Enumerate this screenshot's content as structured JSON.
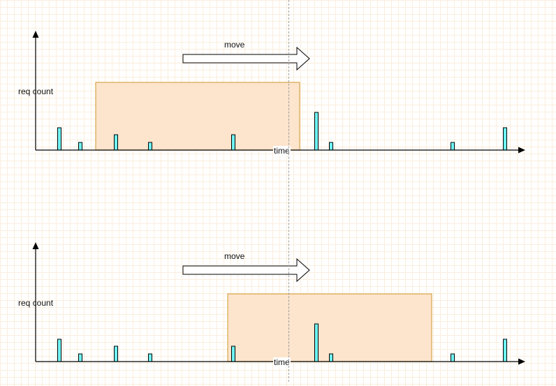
{
  "panels": [
    {
      "id": "top",
      "labels": {
        "y_axis": "req count",
        "x_axis": "time",
        "arrow": "move"
      },
      "window": {
        "from": 137,
        "to": 429
      },
      "requests": [
        {
          "t": 85,
          "count": 3
        },
        {
          "t": 115,
          "count": 1
        },
        {
          "t": 166,
          "count": 2
        },
        {
          "t": 215,
          "count": 1
        },
        {
          "t": 334,
          "count": 2
        },
        {
          "t": 453,
          "count": 5
        },
        {
          "t": 474,
          "count": 1
        },
        {
          "t": 648,
          "count": 1
        },
        {
          "t": 723,
          "count": 3
        }
      ]
    },
    {
      "id": "bottom",
      "labels": {
        "y_axis": "req count",
        "x_axis": "time",
        "arrow": "move"
      },
      "window": {
        "from": 326,
        "to": 618
      },
      "requests": [
        {
          "t": 85,
          "count": 3
        },
        {
          "t": 115,
          "count": 1
        },
        {
          "t": 166,
          "count": 2
        },
        {
          "t": 215,
          "count": 1
        },
        {
          "t": 334,
          "count": 2
        },
        {
          "t": 453,
          "count": 5
        },
        {
          "t": 474,
          "count": 1
        },
        {
          "t": 648,
          "count": 1
        },
        {
          "t": 723,
          "count": 3
        }
      ]
    }
  ],
  "colors": {
    "window_fill": "#fde4cc",
    "window_stroke": "#d6a64a",
    "bar_fill": "#6ff3f3",
    "axis": "#000000",
    "playhead": "#9e9e9e"
  }
}
